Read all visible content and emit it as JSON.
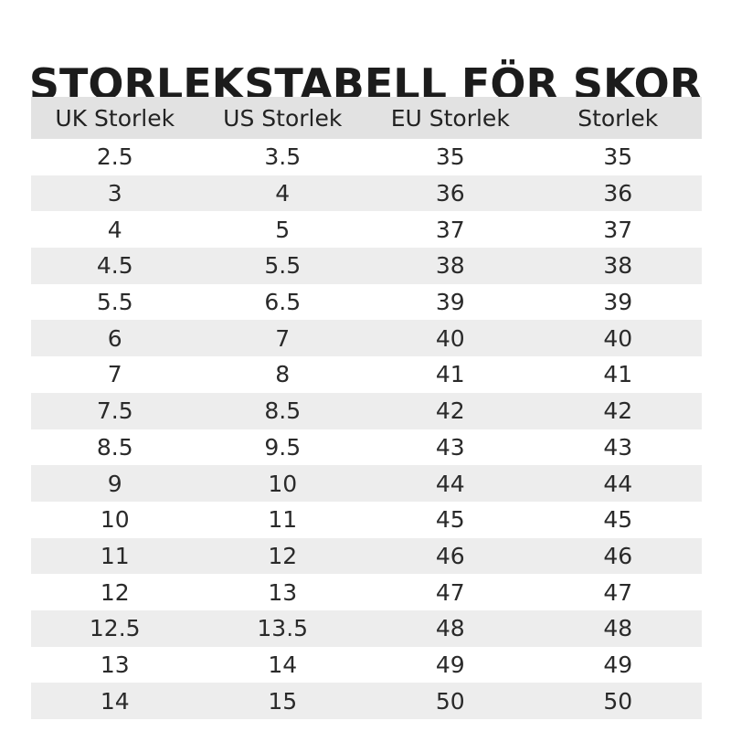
{
  "title": "STORLEKSTABELL FÖR SKOR",
  "table": {
    "headers": [
      "UK Storlek",
      "US Storlek",
      "EU Storlek",
      "Storlek"
    ],
    "rows": [
      [
        "2.5",
        "3.5",
        "35",
        "35"
      ],
      [
        "3",
        "4",
        "36",
        "36"
      ],
      [
        "4",
        "5",
        "37",
        "37"
      ],
      [
        "4.5",
        "5.5",
        "38",
        "38"
      ],
      [
        "5.5",
        "6.5",
        "39",
        "39"
      ],
      [
        "6",
        "7",
        "40",
        "40"
      ],
      [
        "7",
        "8",
        "41",
        "41"
      ],
      [
        "7.5",
        "8.5",
        "42",
        "42"
      ],
      [
        "8.5",
        "9.5",
        "43",
        "43"
      ],
      [
        "9",
        "10",
        "44",
        "44"
      ],
      [
        "10",
        "11",
        "45",
        "45"
      ],
      [
        "11",
        "12",
        "46",
        "46"
      ],
      [
        "12",
        "13",
        "47",
        "47"
      ],
      [
        "12.5",
        "13.5",
        "48",
        "48"
      ],
      [
        "13",
        "14",
        "49",
        "49"
      ],
      [
        "14",
        "15",
        "50",
        "50"
      ]
    ]
  },
  "colors": {
    "header_bg": "#e2e2e2",
    "stripe_bg": "#ededed",
    "text": "#1a1a1a"
  }
}
